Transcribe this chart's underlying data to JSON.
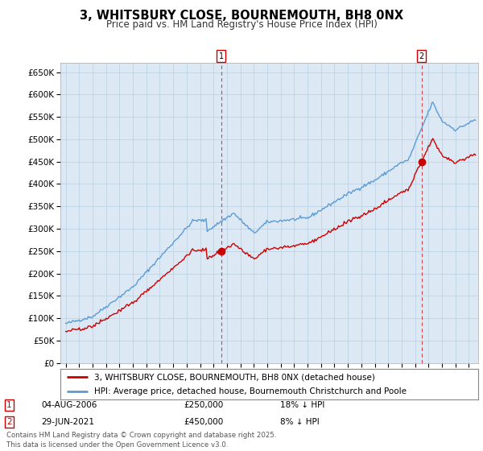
{
  "title": "3, WHITSBURY CLOSE, BOURNEMOUTH, BH8 0NX",
  "subtitle": "Price paid vs. HM Land Registry's House Price Index (HPI)",
  "ylim": [
    0,
    670000
  ],
  "yticks": [
    0,
    50000,
    100000,
    150000,
    200000,
    250000,
    300000,
    350000,
    400000,
    450000,
    500000,
    550000,
    600000,
    650000
  ],
  "ytick_labels": [
    "£0",
    "£50K",
    "£100K",
    "£150K",
    "£200K",
    "£250K",
    "£300K",
    "£350K",
    "£400K",
    "£450K",
    "£500K",
    "£550K",
    "£600K",
    "£650K"
  ],
  "hpi_color": "#5b9bd5",
  "price_color": "#cc0000",
  "chart_bg_color": "#dce9f5",
  "marker1_date": 2006.58,
  "marker1_price": 250000,
  "marker1_label": "1",
  "marker2_date": 2021.49,
  "marker2_price": 450000,
  "marker2_label": "2",
  "legend_line1": "3, WHITSBURY CLOSE, BOURNEMOUTH, BH8 0NX (detached house)",
  "legend_line2": "HPI: Average price, detached house, Bournemouth Christchurch and Poole",
  "footer": "Contains HM Land Registry data © Crown copyright and database right 2025.\nThis data is licensed under the Open Government Licence v3.0.",
  "background_color": "#ffffff",
  "grid_color": "#b8cfe0"
}
